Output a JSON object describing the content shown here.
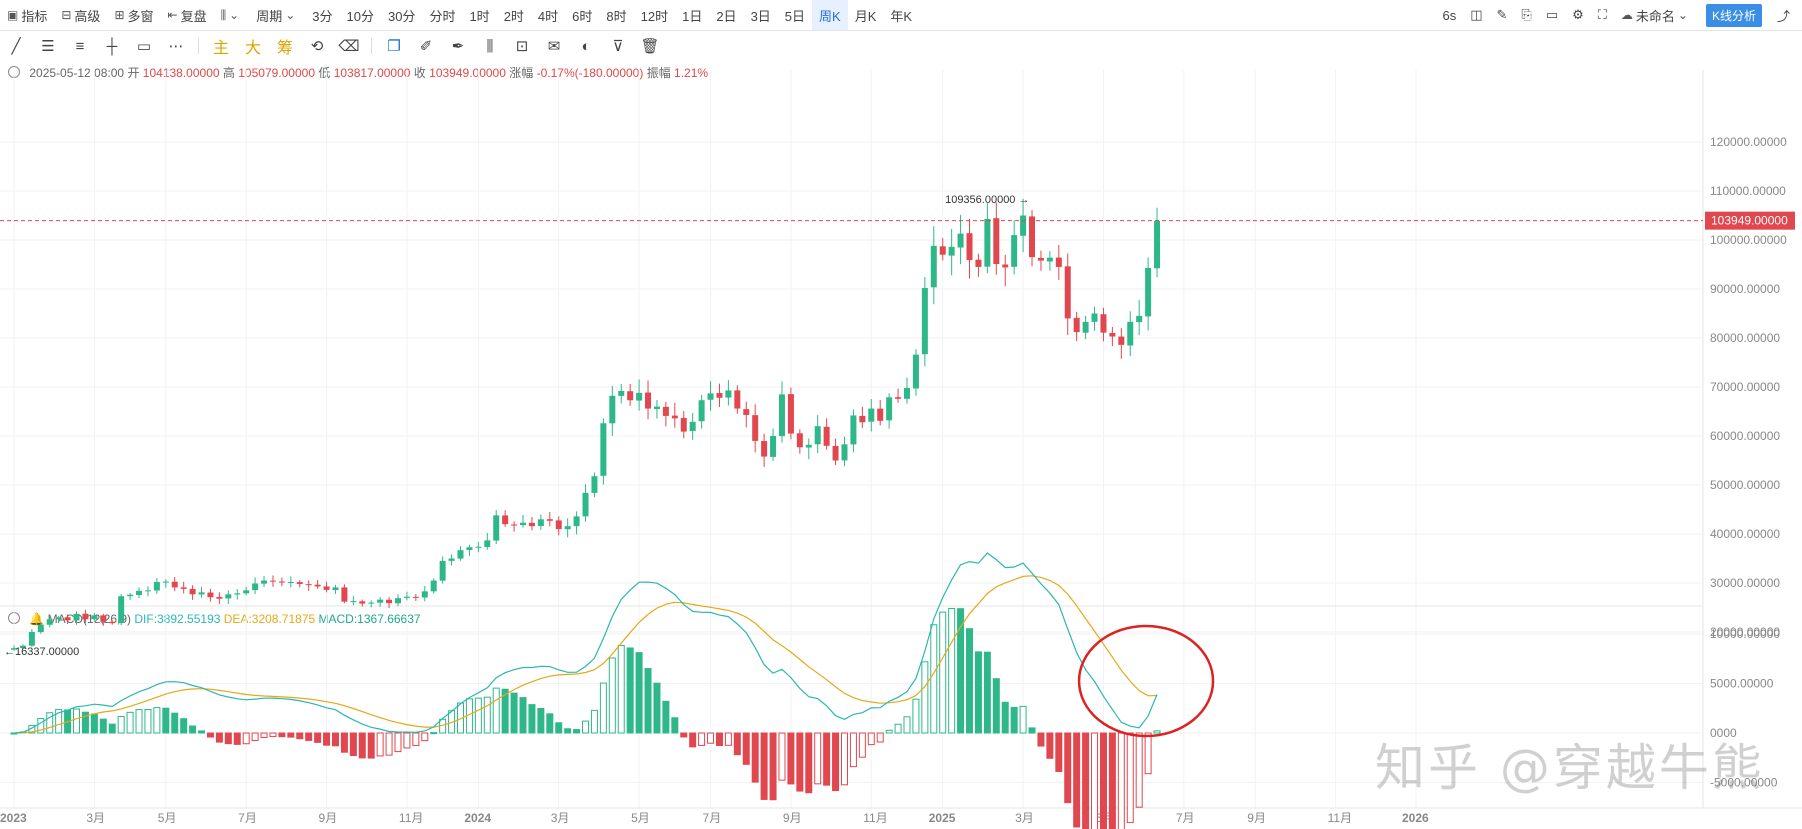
{
  "toolbar": {
    "indicators": "指标",
    "advanced": "高级",
    "multi_window": "多窗",
    "replay": "复盘",
    "period_label": "周期",
    "periods": [
      "3分",
      "10分",
      "30分",
      "分时",
      "1时",
      "2时",
      "4时",
      "6时",
      "8时",
      "12时",
      "1日",
      "2日",
      "3日",
      "5日",
      "周K",
      "月K",
      "年K"
    ],
    "active_period": "周K",
    "refresh": "6s",
    "layout_name": "未命名",
    "analysis_button": "K线分析"
  },
  "drawing_tools": {
    "main": "主",
    "big": "大",
    "chip": "筹"
  },
  "info": {
    "date": "2025-05-12 08:00",
    "open_label": "开",
    "open": "104138.00000",
    "high_label": "高",
    "high": "105079.00000",
    "low_label": "低",
    "low": "103817.00000",
    "close_label": "收",
    "close": "103949.00000",
    "change_label": "涨幅",
    "change": "-0.17%(-180.00000)",
    "amplitude_label": "振幅",
    "amplitude": "1.21%"
  },
  "macd_info": {
    "name": "MACD(12,26,9)",
    "dif": "DIF:3892.55193",
    "dea": "DEA:3208.71875",
    "macd": "MACD:1367.66637"
  },
  "watermark": "知乎 @穿越牛熊",
  "chart_data": [
    {
      "type": "candlestick",
      "title": "",
      "ylim": [
        15000,
        125000
      ],
      "y_ticks": [
        20000,
        30000,
        40000,
        50000,
        60000,
        70000,
        80000,
        90000,
        100000,
        110000,
        120000
      ],
      "y_tick_labels": [
        "20000.00000",
        "30000.00000",
        "40000.00000",
        "50000.00000",
        "60000.00000",
        "70000.00000",
        "80000.00000",
        "90000.00000",
        "100000.00000",
        "110000.00000",
        "120000.00000"
      ],
      "x_tick_labels": [
        "2023",
        "3月",
        "5月",
        "7月",
        "9月",
        "11月",
        "2024",
        "3月",
        "5月",
        "7月",
        "9月",
        "11月",
        "2025",
        "3月",
        "5月",
        "7月",
        "9月",
        "11月",
        "2026"
      ],
      "x_tick_weeks": [
        0,
        9,
        17,
        26,
        35,
        44,
        52,
        61,
        70,
        78,
        87,
        96,
        104,
        113,
        122,
        131,
        139,
        148,
        157
      ],
      "highest_label": "109356.00000",
      "lowest_label": "16337.00000",
      "last_price": 103949,
      "last_price_label": "103949.00000",
      "up_color": "#2eb88a",
      "down_color": "#e0474f",
      "close": [
        16700,
        17200,
        20000,
        21500,
        22600,
        23000,
        22400,
        23700,
        22600,
        23400,
        22100,
        21800,
        27300,
        27600,
        28400,
        28500,
        30200,
        30300,
        29100,
        28800,
        27700,
        28100,
        27100,
        26800,
        27700,
        27900,
        28500,
        29900,
        30500,
        30300,
        30100,
        30200,
        29800,
        29600,
        29300,
        28600,
        29100,
        26200,
        26300,
        25800,
        26000,
        26600,
        25900,
        26900,
        27200,
        27000,
        28300,
        30500,
        34500,
        35000,
        36700,
        37300,
        37400,
        38700,
        43800,
        42000,
        41900,
        42300,
        41600,
        43000,
        42700,
        41000,
        41600,
        43600,
        48400,
        51800,
        62600,
        68200,
        69200,
        67300,
        68800,
        65600,
        66000,
        64100,
        63600,
        60900,
        62900,
        67300,
        68700,
        67800,
        69300,
        65600,
        64300,
        59000,
        55800,
        60000,
        68500,
        60500,
        57700,
        58200,
        62000,
        58000,
        55000,
        58300,
        64200,
        62800,
        65600,
        63100,
        67900,
        67600,
        69800,
        76600,
        90200,
        98800,
        97000,
        98600,
        101300,
        95900,
        94500,
        104300,
        95100,
        94400,
        101000,
        105000,
        96500,
        95800,
        96400,
        94500,
        84000,
        81200,
        83300,
        85000,
        81100,
        80300,
        78600,
        83300,
        84500,
        94300,
        103900
      ]
    },
    {
      "type": "bar",
      "title": "MACD(12,26,9)",
      "ylim": [
        -6000,
        11500
      ],
      "y_ticks": [
        -5000,
        0,
        5000,
        10000
      ],
      "y_tick_labels": [
        "-5000.00000",
        "0000",
        "5000.00000",
        "10000.00000"
      ],
      "series": [
        {
          "name": "DIF",
          "color": "#2bb7b3"
        },
        {
          "name": "DEA",
          "color": "#e6a818"
        },
        {
          "name": "MACD",
          "color": "#2eb88a"
        }
      ],
      "dif_last": 3892.55193,
      "dea_last": 3208.71875,
      "macd_last": 1367.66637
    }
  ]
}
